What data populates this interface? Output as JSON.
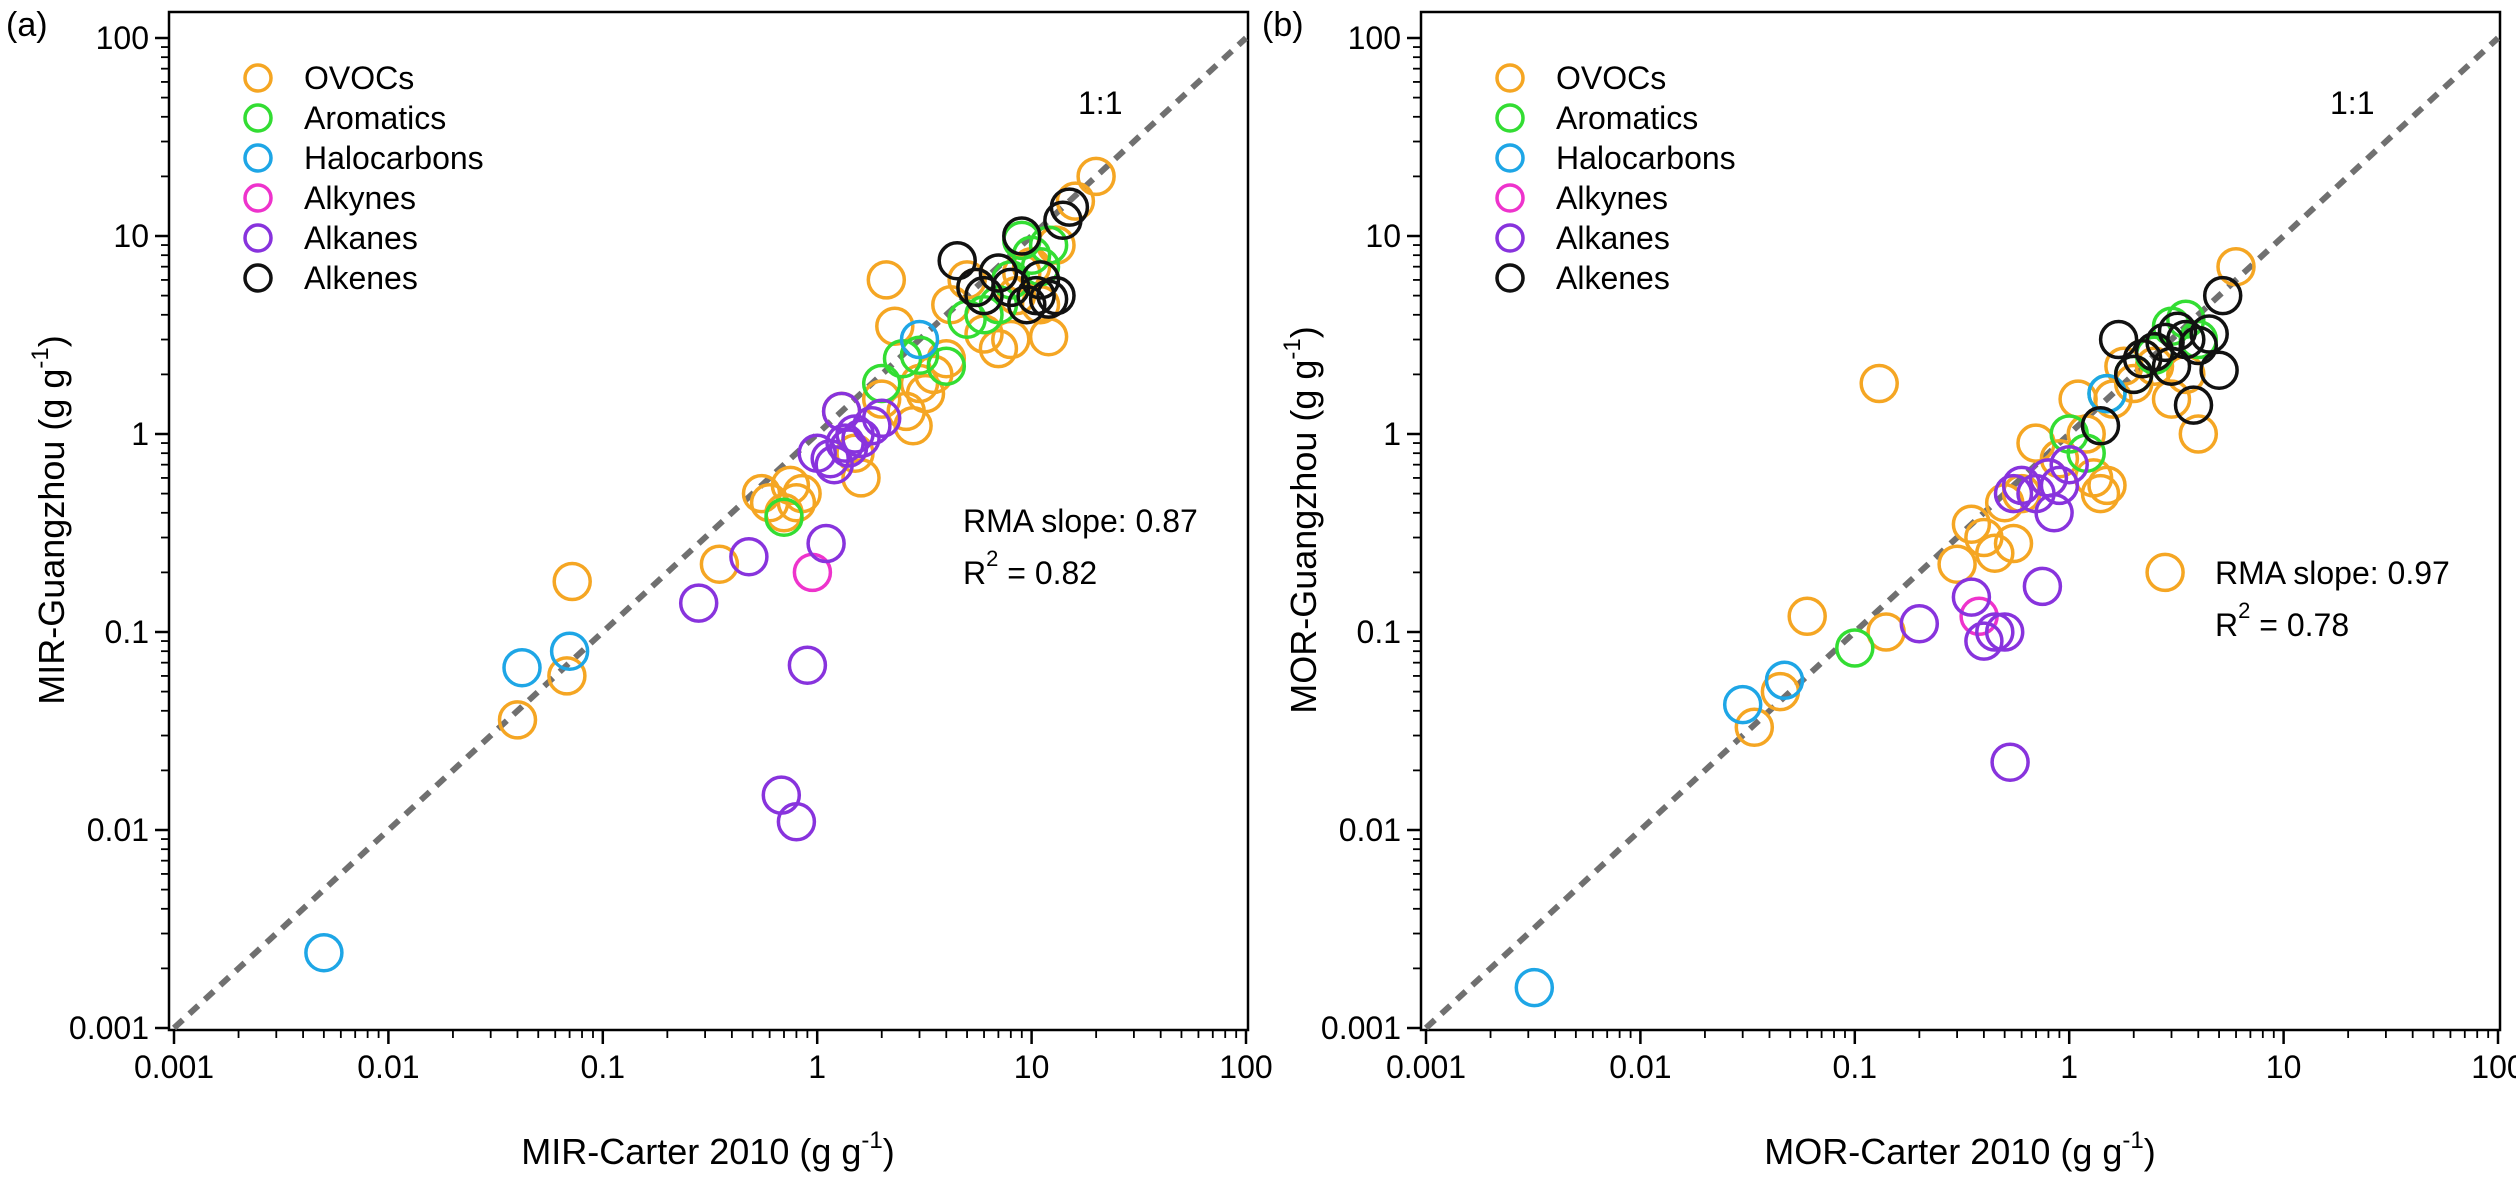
{
  "chart_data": [
    {
      "panel_label": "(a)",
      "type": "scatter",
      "xlabel": "MIR-Carter 2010 (g g",
      "xlabel_sup": "-1",
      "xlabel_end": ")",
      "ylabel": "MIR-Guangzhou  (g g",
      "ylabel_sup": "-1",
      "ylabel_end": ")",
      "x_scale": "log",
      "y_scale": "log",
      "xlim": [
        0.001,
        100
      ],
      "ylim": [
        0.001,
        100
      ],
      "x_ticks": [
        "0.001",
        "0.01",
        "0.1",
        "1",
        "10",
        "100"
      ],
      "y_ticks": [
        "0.001",
        "0.01",
        "0.1",
        "1",
        "10",
        "100"
      ],
      "reference_line": {
        "label": "1:1",
        "style": "dashed",
        "color": "#707070"
      },
      "annotations": {
        "slope_text": "RMA slope: 0.87",
        "r2_prefix": "R",
        "r2_sup": "2",
        "r2_suffix": " = 0.82"
      },
      "legend_position": "top-left",
      "series": [
        {
          "name": "OVOCs",
          "color": "#F5A623",
          "points": [
            [
              0.04,
              0.036
            ],
            [
              0.068,
              0.06
            ],
            [
              0.072,
              0.18
            ],
            [
              0.35,
              0.22
            ],
            [
              0.55,
              0.5
            ],
            [
              0.6,
              0.45
            ],
            [
              0.7,
              0.4
            ],
            [
              0.75,
              0.55
            ],
            [
              0.8,
              0.45
            ],
            [
              0.85,
              0.5
            ],
            [
              1.3,
              1.3
            ],
            [
              1.5,
              0.8
            ],
            [
              1.6,
              0.6
            ],
            [
              2.0,
              1.5
            ],
            [
              2.1,
              6.0
            ],
            [
              2.3,
              3.5
            ],
            [
              2.6,
              1.3
            ],
            [
              2.8,
              1.1
            ],
            [
              3.0,
              1.8
            ],
            [
              3.2,
              1.6
            ],
            [
              3.5,
              2.0
            ],
            [
              4.0,
              2.4
            ],
            [
              4.2,
              4.5
            ],
            [
              5.0,
              6.0
            ],
            [
              5.5,
              5.5
            ],
            [
              6.0,
              3.2
            ],
            [
              7.0,
              2.7
            ],
            [
              8.0,
              3.0
            ],
            [
              8.5,
              5.0
            ],
            [
              9.0,
              6.5
            ],
            [
              10.0,
              7.0
            ],
            [
              11.0,
              4.5
            ],
            [
              12.0,
              3.1
            ],
            [
              13.0,
              9.0
            ],
            [
              16.0,
              15.0
            ],
            [
              20.0,
              20.0
            ]
          ]
        },
        {
          "name": "Aromatics",
          "color": "#33DD33",
          "points": [
            [
              0.7,
              0.38
            ],
            [
              2.0,
              1.8
            ],
            [
              2.5,
              2.4
            ],
            [
              3.0,
              2.5
            ],
            [
              4.0,
              2.2
            ],
            [
              5.0,
              3.8
            ],
            [
              6.0,
              4.0
            ],
            [
              7.0,
              4.5
            ],
            [
              8.0,
              6.0
            ],
            [
              9.0,
              9.5
            ],
            [
              10.0,
              8.0
            ],
            [
              11.0,
              7.0
            ],
            [
              12.0,
              9.0
            ]
          ]
        },
        {
          "name": "Halocarbons",
          "color": "#1EA6E6",
          "points": [
            [
              0.005,
              0.0024
            ],
            [
              0.042,
              0.066
            ],
            [
              0.07,
              0.08
            ],
            [
              3.0,
              3.0
            ]
          ]
        },
        {
          "name": "Alkynes",
          "color": "#EE33CC",
          "points": [
            [
              0.95,
              0.2
            ]
          ]
        },
        {
          "name": "Alkanes",
          "color": "#8833DD",
          "points": [
            [
              0.28,
              0.14
            ],
            [
              0.48,
              0.24
            ],
            [
              0.68,
              0.015
            ],
            [
              0.8,
              0.011
            ],
            [
              0.9,
              0.068
            ],
            [
              1.0,
              0.8
            ],
            [
              1.1,
              0.28
            ],
            [
              1.15,
              0.75
            ],
            [
              1.2,
              0.7
            ],
            [
              1.3,
              1.3
            ],
            [
              1.35,
              0.9
            ],
            [
              1.4,
              0.85
            ],
            [
              1.5,
              1.0
            ],
            [
              1.6,
              0.95
            ],
            [
              1.8,
              1.1
            ],
            [
              2.0,
              1.2
            ]
          ]
        },
        {
          "name": "Alkenes",
          "color": "#111111",
          "points": [
            [
              4.5,
              7.5
            ],
            [
              5.5,
              5.5
            ],
            [
              6.0,
              5.0
            ],
            [
              7.0,
              6.5
            ],
            [
              8.0,
              5.5
            ],
            [
              9.0,
              10.0
            ],
            [
              9.5,
              4.5
            ],
            [
              10.5,
              5.0
            ],
            [
              11.0,
              6.0
            ],
            [
              12.0,
              4.8
            ],
            [
              13.0,
              5.0
            ],
            [
              14.0,
              12.0
            ],
            [
              15.0,
              14.0
            ]
          ]
        }
      ]
    },
    {
      "panel_label": "(b)",
      "type": "scatter",
      "xlabel": "MOR-Carter 2010 (g g",
      "xlabel_sup": "-1",
      "xlabel_end": ")",
      "ylabel": "MOR-Guangzhou  (g g",
      "ylabel_sup": "-1",
      "ylabel_end": ")",
      "x_scale": "log",
      "y_scale": "log",
      "xlim": [
        0.001,
        100
      ],
      "ylim": [
        0.001,
        100
      ],
      "x_ticks": [
        "0.001",
        "0.01",
        "0.1",
        "1",
        "10",
        "100"
      ],
      "y_ticks": [
        "0.001",
        "0.01",
        "0.1",
        "1",
        "10",
        "100"
      ],
      "reference_line": {
        "label": "1:1",
        "style": "dashed",
        "color": "#707070"
      },
      "annotations": {
        "slope_text": "RMA slope: 0.97",
        "r2_prefix": "R",
        "r2_sup": "2",
        "r2_suffix": " = 0.78"
      },
      "legend_position": "top-left",
      "series": [
        {
          "name": "OVOCs",
          "color": "#F5A623",
          "points": [
            [
              0.034,
              0.033
            ],
            [
              0.045,
              0.05
            ],
            [
              0.06,
              0.12
            ],
            [
              0.13,
              1.8
            ],
            [
              0.14,
              0.1
            ],
            [
              0.3,
              0.22
            ],
            [
              0.35,
              0.35
            ],
            [
              0.4,
              0.3
            ],
            [
              0.45,
              0.25
            ],
            [
              0.5,
              0.45
            ],
            [
              0.55,
              0.28
            ],
            [
              0.6,
              0.5
            ],
            [
              0.7,
              0.9
            ],
            [
              0.8,
              0.6
            ],
            [
              0.9,
              0.75
            ],
            [
              1.1,
              1.5
            ],
            [
              1.2,
              1.0
            ],
            [
              1.3,
              0.6
            ],
            [
              1.4,
              0.5
            ],
            [
              1.5,
              0.55
            ],
            [
              1.6,
              1.5
            ],
            [
              1.8,
              2.2
            ],
            [
              2.0,
              1.8
            ],
            [
              2.2,
              2.4
            ],
            [
              2.5,
              2.2
            ],
            [
              2.8,
              0.2
            ],
            [
              3.0,
              1.5
            ],
            [
              3.5,
              2.0
            ],
            [
              4.0,
              1.0
            ],
            [
              6.0,
              7.0
            ]
          ]
        },
        {
          "name": "Aromatics",
          "color": "#33DD33",
          "points": [
            [
              0.1,
              0.083
            ],
            [
              1.0,
              1.0
            ],
            [
              1.2,
              0.8
            ],
            [
              1.5,
              1.6
            ],
            [
              2.0,
              2.0
            ],
            [
              2.5,
              2.5
            ],
            [
              3.0,
              3.5
            ],
            [
              3.5,
              3.8
            ],
            [
              4.0,
              3.0
            ]
          ]
        },
        {
          "name": "Halocarbons",
          "color": "#1EA6E6",
          "points": [
            [
              0.0032,
              0.0016
            ],
            [
              0.03,
              0.043
            ],
            [
              0.047,
              0.057
            ],
            [
              1.5,
              1.6
            ]
          ]
        },
        {
          "name": "Alkynes",
          "color": "#EE33CC",
          "points": [
            [
              0.38,
              0.12
            ]
          ]
        },
        {
          "name": "Alkanes",
          "color": "#8833DD",
          "points": [
            [
              0.2,
              0.11
            ],
            [
              0.35,
              0.15
            ],
            [
              0.4,
              0.09
            ],
            [
              0.45,
              0.1
            ],
            [
              0.5,
              0.1
            ],
            [
              0.53,
              0.022
            ],
            [
              0.55,
              0.5
            ],
            [
              0.6,
              0.55
            ],
            [
              0.7,
              0.5
            ],
            [
              0.75,
              0.17
            ],
            [
              0.8,
              0.6
            ],
            [
              0.85,
              0.4
            ],
            [
              0.9,
              0.55
            ],
            [
              1.0,
              0.7
            ]
          ]
        },
        {
          "name": "Alkenes",
          "color": "#111111",
          "points": [
            [
              1.4,
              1.1
            ],
            [
              1.7,
              3.0
            ],
            [
              2.0,
              2.0
            ],
            [
              2.2,
              2.4
            ],
            [
              2.5,
              2.6
            ],
            [
              2.8,
              2.9
            ],
            [
              3.0,
              2.2
            ],
            [
              3.2,
              3.3
            ],
            [
              3.5,
              3.0
            ],
            [
              3.8,
              1.4
            ],
            [
              4.0,
              2.8
            ],
            [
              4.5,
              3.2
            ],
            [
              5.0,
              2.1
            ],
            [
              5.2,
              5.0
            ]
          ]
        }
      ]
    }
  ]
}
